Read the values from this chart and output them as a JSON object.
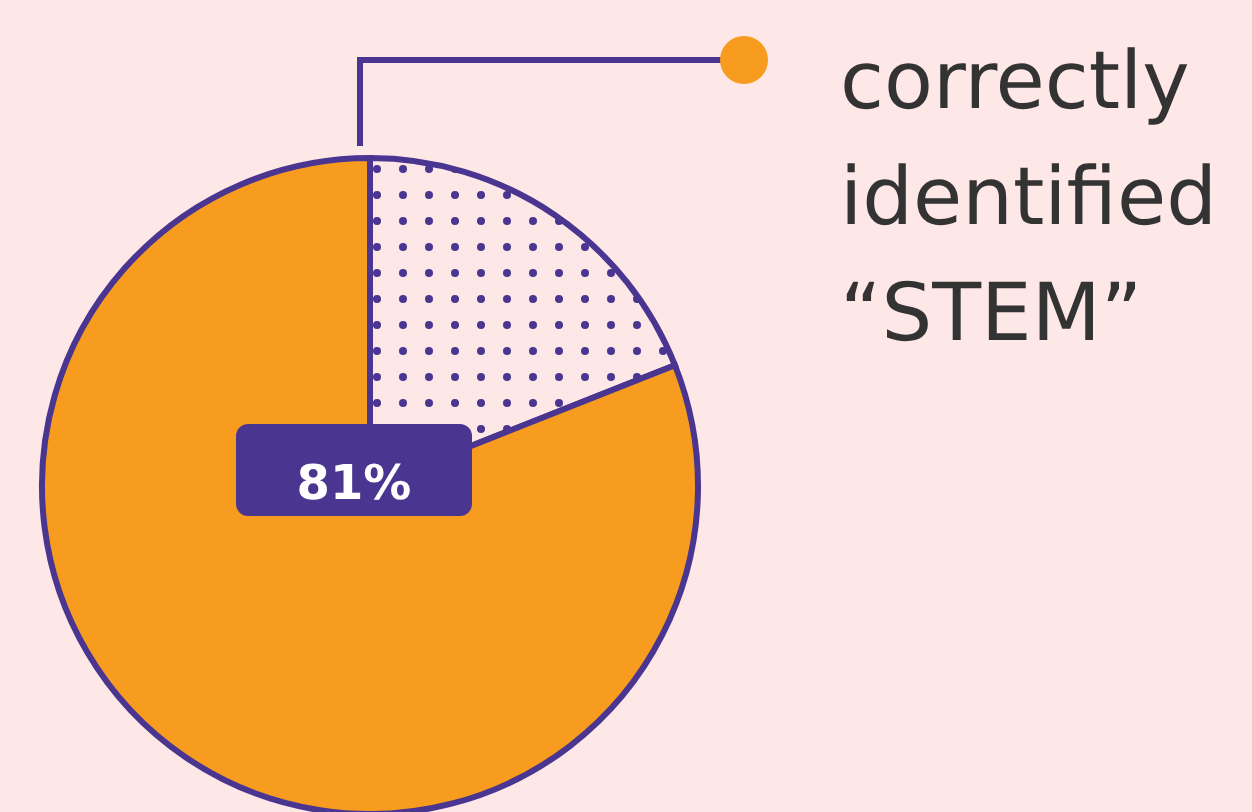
{
  "chart_data": {
    "type": "pie",
    "categories": [
      null,
      "correctly identified “STEM”"
    ],
    "values": [
      19,
      81
    ],
    "colors": [
      "#4a3590",
      "#f89c1f"
    ],
    "value_labels": [
      null,
      "81%"
    ],
    "legend": "top right"
  }
}
